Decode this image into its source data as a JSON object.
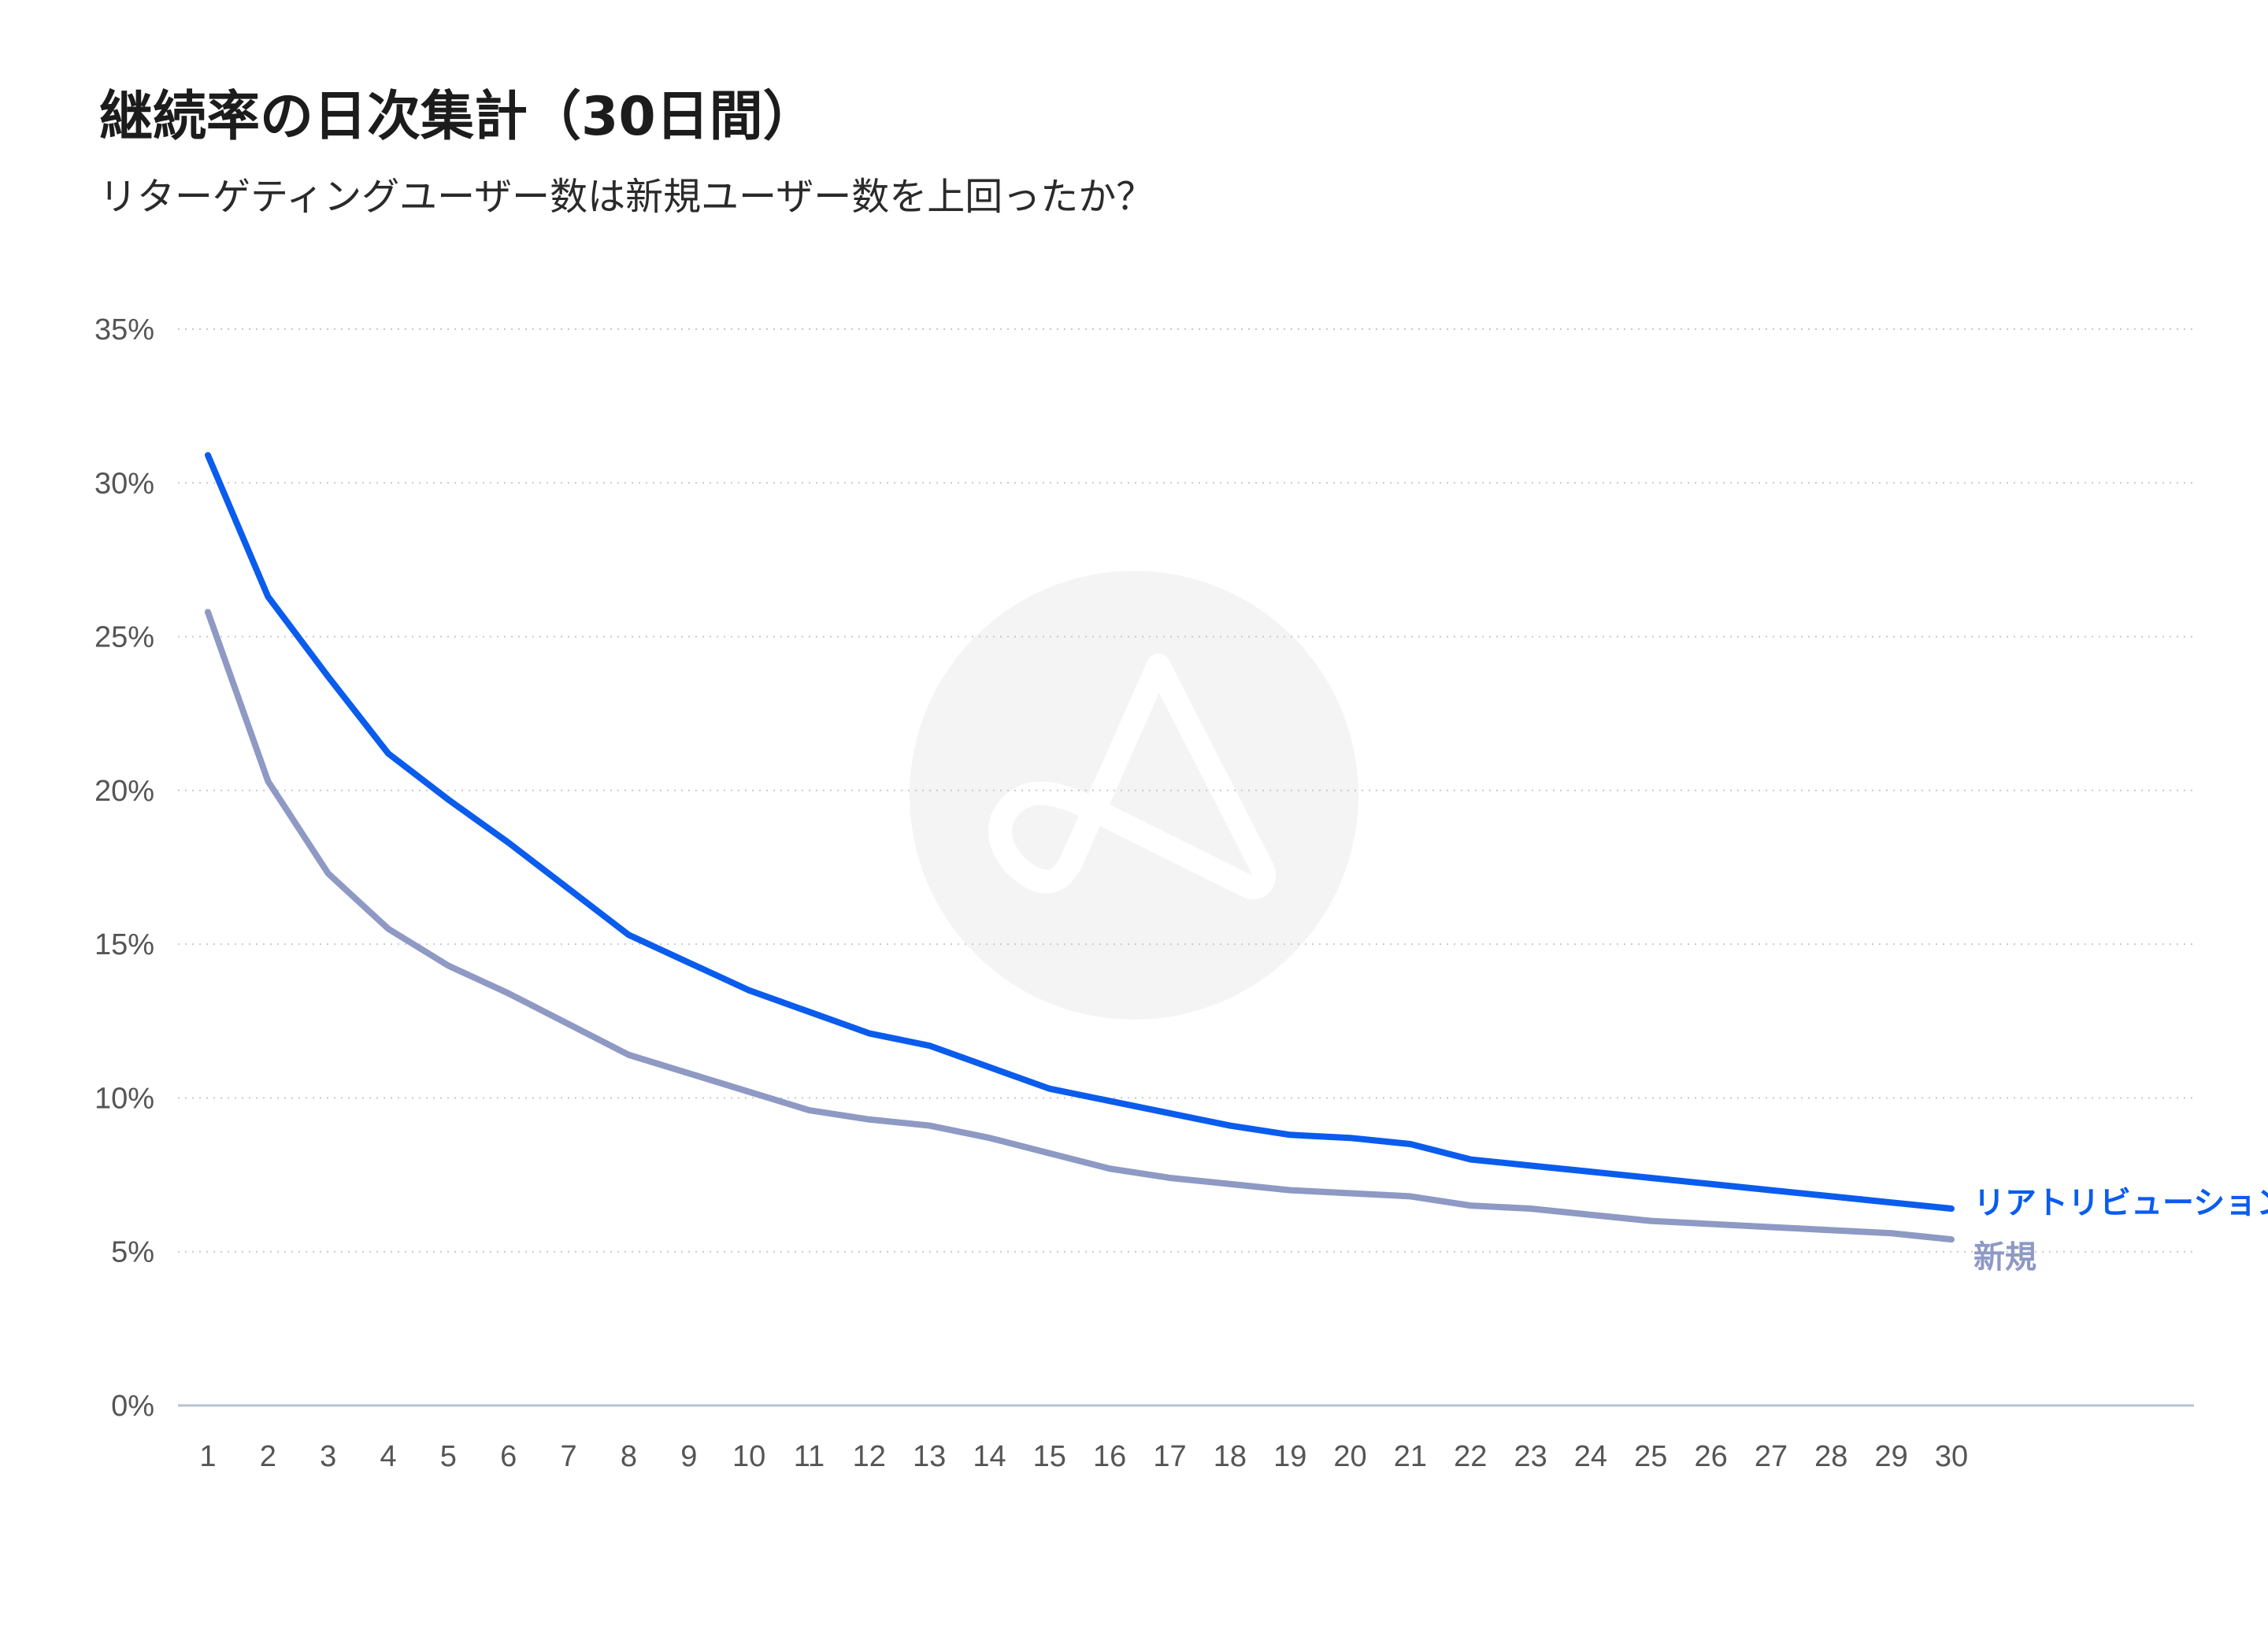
{
  "title": "継続率の日次集計（30日間）",
  "subtitle": "リターゲティングユーザー数は新規ユーザー数を上回ったか？",
  "chart_data": {
    "type": "line",
    "title": "継続率の日次集計（30日間）",
    "subtitle": "リターゲティングユーザー数は新規ユーザー数を上回ったか？",
    "xlabel": "",
    "ylabel": "",
    "x": [
      1,
      2,
      3,
      4,
      5,
      6,
      7,
      8,
      9,
      10,
      11,
      12,
      13,
      14,
      15,
      16,
      17,
      18,
      19,
      20,
      21,
      22,
      23,
      24,
      25,
      26,
      27,
      28,
      29,
      30
    ],
    "ylim": [
      0,
      35
    ],
    "yticks": [
      "0%",
      "5%",
      "10%",
      "15%",
      "20%",
      "25%",
      "30%",
      "35%"
    ],
    "ytick_values": [
      0,
      5,
      10,
      15,
      20,
      25,
      30,
      35
    ],
    "grid": true,
    "legend": "inline-right",
    "series": [
      {
        "name": "リアトリビューション",
        "color": "#0a5ced",
        "values": [
          30.9,
          26.3,
          23.7,
          21.2,
          19.7,
          18.3,
          16.8,
          15.3,
          14.4,
          13.5,
          12.8,
          12.1,
          11.7,
          11.0,
          10.3,
          9.9,
          9.5,
          9.1,
          8.8,
          8.7,
          8.5,
          8.0,
          7.8,
          7.6,
          7.4,
          7.2,
          7.0,
          6.8,
          6.6,
          6.4
        ]
      },
      {
        "name": "新規",
        "color": "#8e99c4",
        "values": [
          25.8,
          20.3,
          17.3,
          15.5,
          14.3,
          13.4,
          12.4,
          11.4,
          10.8,
          10.2,
          9.6,
          9.3,
          9.1,
          8.7,
          8.2,
          7.7,
          7.4,
          7.2,
          7.0,
          6.9,
          6.8,
          6.5,
          6.4,
          6.2,
          6.0,
          5.9,
          5.8,
          5.7,
          5.6,
          5.4
        ]
      }
    ]
  },
  "watermark": {
    "icon": "adjust-logo-icon",
    "color": "#f4f4f4"
  }
}
